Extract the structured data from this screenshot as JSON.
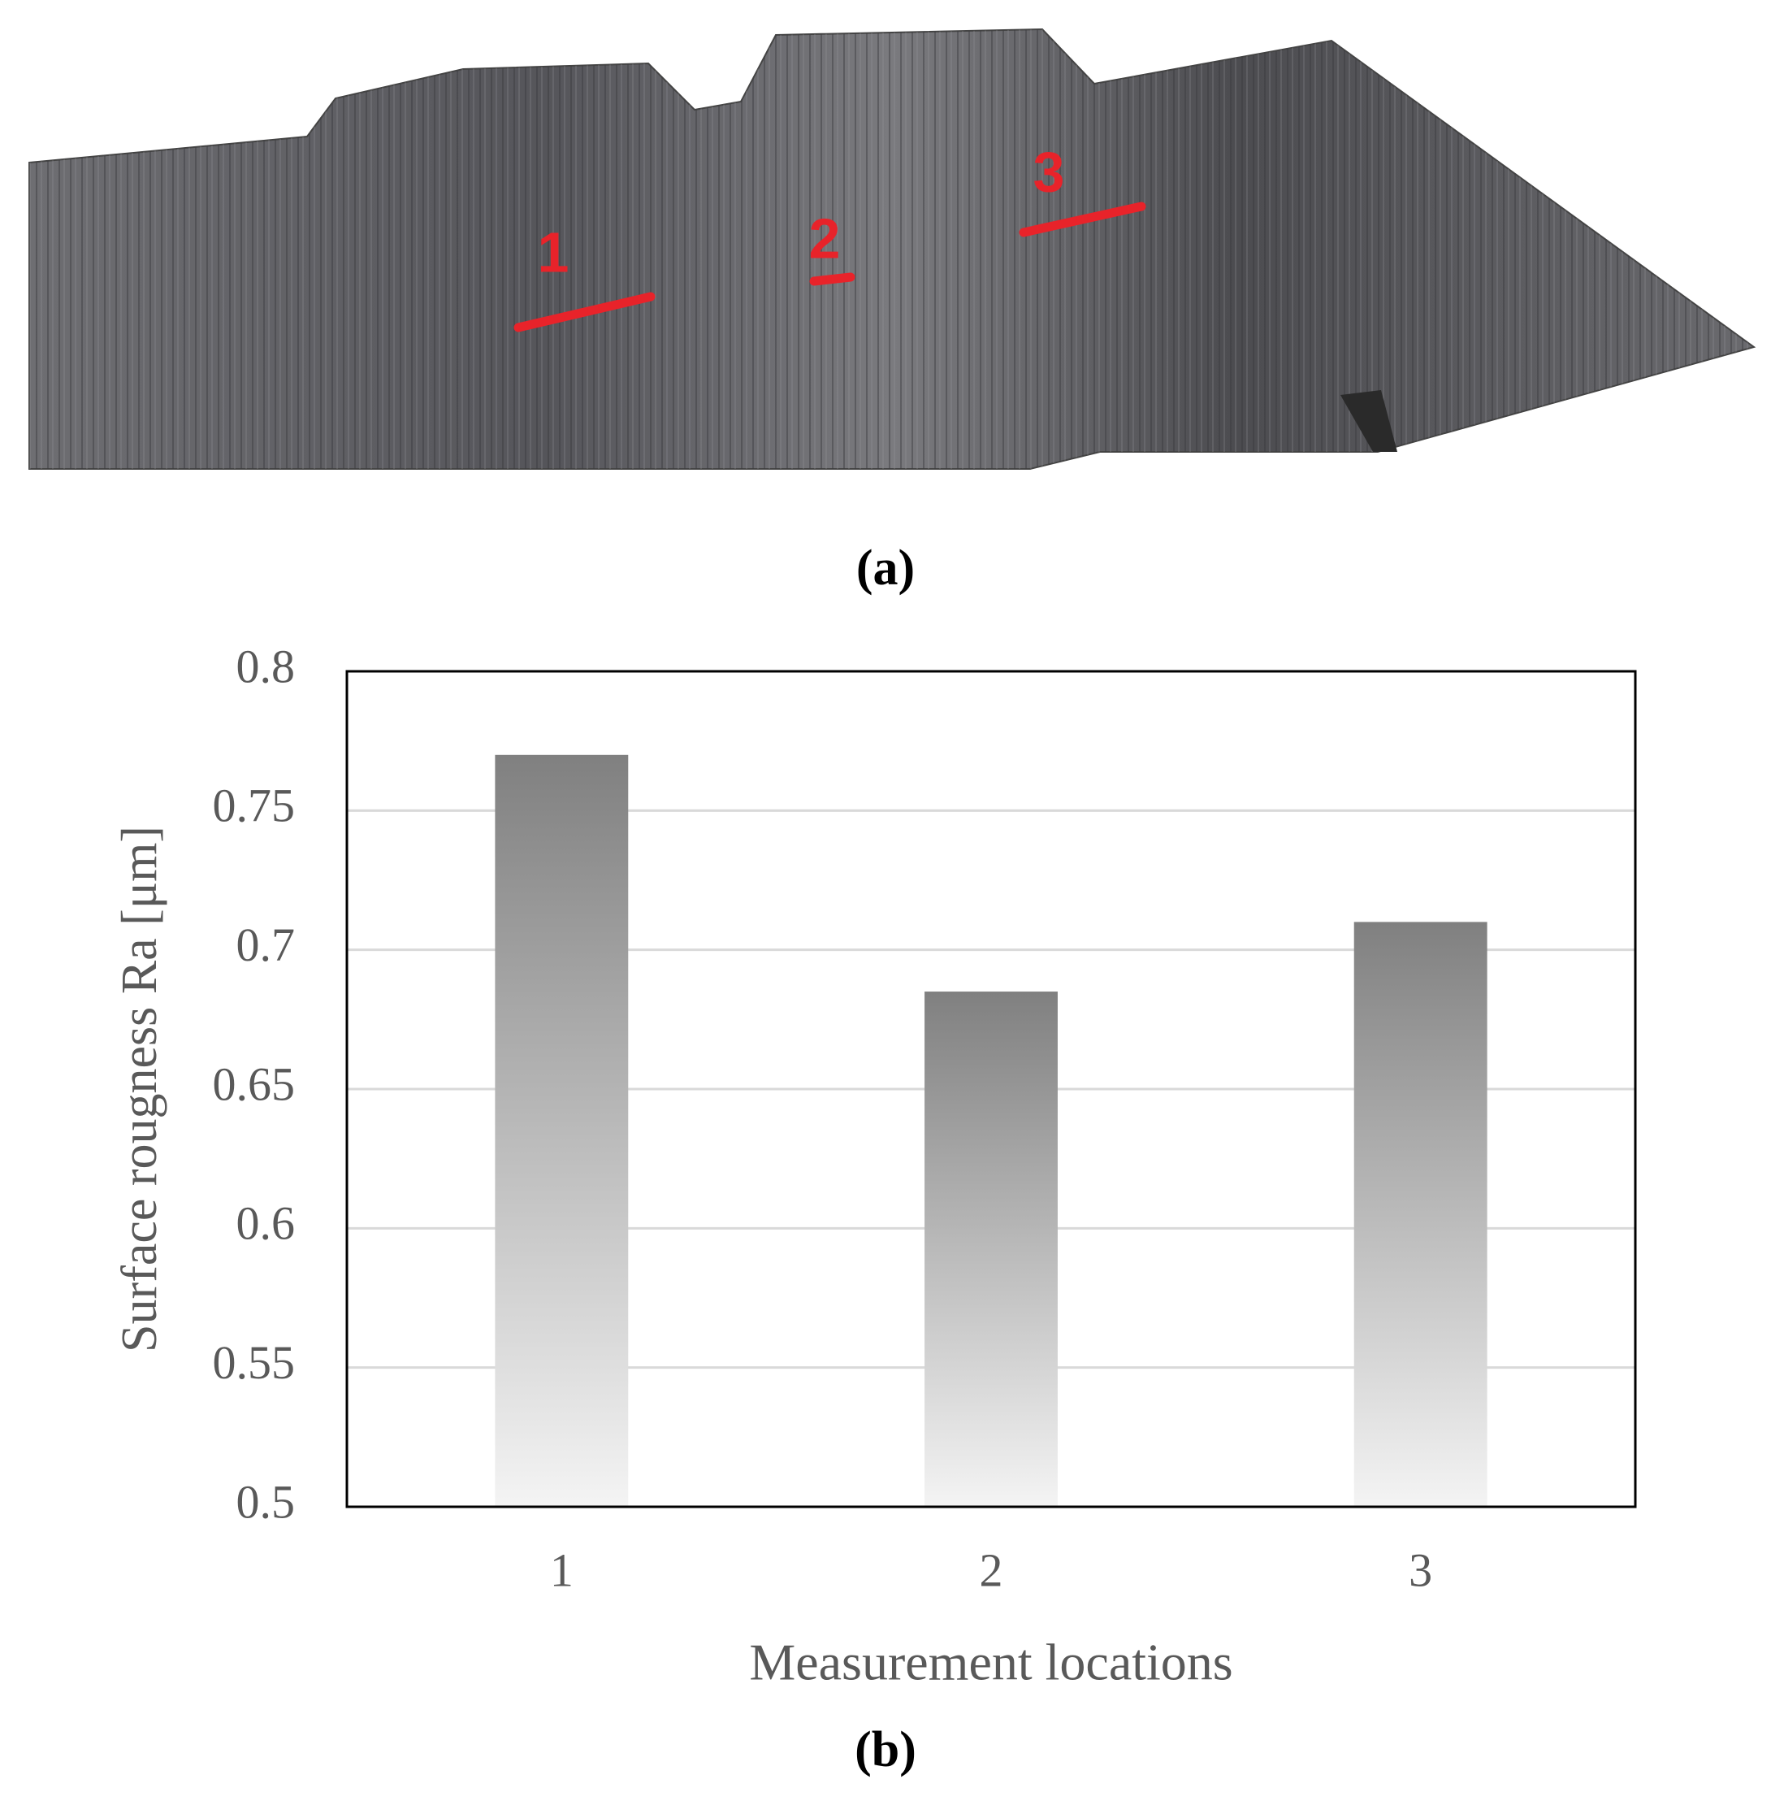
{
  "figure": {
    "panel_a": {
      "caption": "(a)",
      "markers": [
        "1",
        "2",
        "3"
      ]
    },
    "panel_b": {
      "caption": "(b)"
    }
  },
  "chart_data": {
    "type": "bar",
    "ylabel": "Surface rougness  Ra [μm]",
    "xlabel": "Measurement locations",
    "categories": [
      "1",
      "2",
      "3"
    ],
    "values": [
      0.77,
      0.685,
      0.71
    ],
    "color": "#808080",
    "ylim": [
      0.5,
      0.8
    ],
    "yticks": [
      0.5,
      0.55,
      0.6,
      0.65,
      0.7,
      0.75,
      0.8
    ],
    "grid": true
  }
}
